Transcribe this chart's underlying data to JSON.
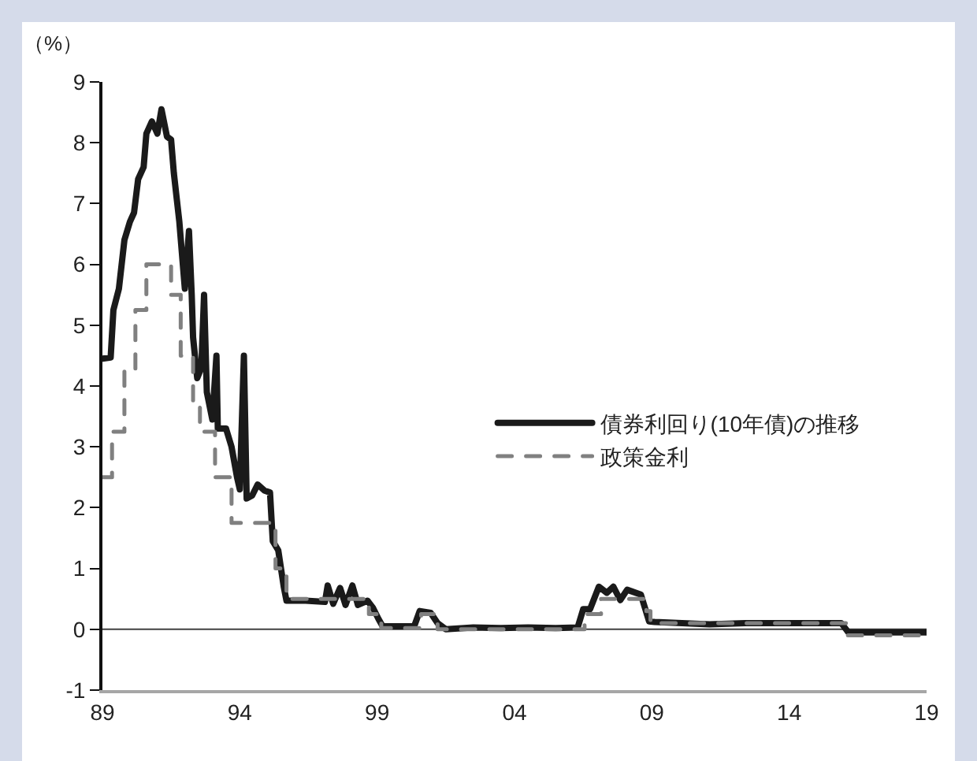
{
  "chart_data": {
    "type": "line",
    "ylabel": "（%）",
    "xlim": [
      1989,
      2019
    ],
    "xticks": [
      {
        "value": 1989,
        "label": "89"
      },
      {
        "value": 1994,
        "label": "94"
      },
      {
        "value": 1999,
        "label": "99"
      },
      {
        "value": 2004,
        "label": "04"
      },
      {
        "value": 2009,
        "label": "09"
      },
      {
        "value": 2014,
        "label": "14"
      },
      {
        "value": 2019,
        "label": "19"
      }
    ],
    "ylim": [
      -1,
      9
    ],
    "yticks": [
      -1,
      0,
      1,
      2,
      3,
      4,
      5,
      6,
      7,
      8,
      9
    ],
    "grid": false,
    "legend": "right",
    "marker": "none",
    "ref_lines": [
      {
        "axis": "y",
        "value": 0,
        "color": "#404040"
      }
    ],
    "series": [
      {
        "name": "債券利回り(10年債)の推移",
        "color": "#1a1a1a",
        "line_style": "solid",
        "x": [
          1989.0,
          1989.3,
          1989.4,
          1989.6,
          1989.8,
          1990.0,
          1990.15,
          1990.3,
          1990.5,
          1990.6,
          1990.8,
          1991.0,
          1991.15,
          1991.35,
          1991.5,
          1991.6,
          1991.8,
          1992.0,
          1992.15,
          1992.25,
          1992.3,
          1992.45,
          1992.6,
          1992.7,
          1992.8,
          1993.0,
          1993.15,
          1993.2,
          1993.5,
          1993.7,
          1993.9,
          1994.0,
          1994.15,
          1994.25,
          1994.45,
          1994.65,
          1994.9,
          1995.1,
          1995.2,
          1995.4,
          1995.6,
          1995.7,
          1996.4,
          1997.1,
          1997.2,
          1997.4,
          1997.65,
          1997.85,
          1998.1,
          1998.3,
          1998.65,
          1998.85,
          1999.05,
          1999.2,
          2000.35,
          2000.55,
          2000.95,
          2001.2,
          2001.5,
          2002.5,
          2003.5,
          2004.5,
          2005.5,
          2006.3,
          2006.5,
          2006.75,
          2007.07,
          2007.36,
          2007.6,
          2007.85,
          2008.1,
          2008.6,
          2008.9,
          2009.1,
          2011.1,
          2012.4,
          2015.9,
          2016.15,
          2019.0
        ],
        "values": [
          4.45,
          4.47,
          5.25,
          5.6,
          6.4,
          6.7,
          6.85,
          7.4,
          7.6,
          8.15,
          8.35,
          8.15,
          8.55,
          8.1,
          8.05,
          7.5,
          6.7,
          5.6,
          6.55,
          5.5,
          4.8,
          4.13,
          4.3,
          5.5,
          3.9,
          3.45,
          4.5,
          3.3,
          3.3,
          3.0,
          2.5,
          2.3,
          4.5,
          2.15,
          2.2,
          2.38,
          2.28,
          2.25,
          1.45,
          1.3,
          0.7,
          0.47,
          0.47,
          0.45,
          0.72,
          0.42,
          0.68,
          0.4,
          0.72,
          0.4,
          0.47,
          0.35,
          0.17,
          0.05,
          0.05,
          0.3,
          0.27,
          0.1,
          0.0,
          0.03,
          0.02,
          0.03,
          0.02,
          0.03,
          0.33,
          0.33,
          0.7,
          0.6,
          0.7,
          0.48,
          0.65,
          0.57,
          0.13,
          0.12,
          0.08,
          0.1,
          0.1,
          -0.05,
          -0.05
        ]
      },
      {
        "name": "政策金利",
        "color": "#808080",
        "line_style": "dashed",
        "x": [
          1989.0,
          1989.35,
          1989.35,
          1989.8,
          1989.8,
          1990.2,
          1990.2,
          1990.6,
          1990.6,
          1991.5,
          1991.5,
          1991.85,
          1991.85,
          1992.3,
          1992.3,
          1992.55,
          1992.55,
          1993.1,
          1993.1,
          1993.7,
          1993.7,
          1995.3,
          1995.3,
          1995.7,
          1995.7,
          1998.7,
          1998.7,
          1999.15,
          1999.15,
          2000.6,
          2000.6,
          2001.2,
          2001.2,
          2006.55,
          2006.55,
          2007.15,
          2007.15,
          2008.8,
          2008.8,
          2008.95,
          2008.95,
          2016.1,
          2016.1,
          2019.0
        ],
        "values": [
          2.5,
          2.5,
          3.25,
          3.25,
          4.25,
          4.25,
          5.25,
          5.25,
          6.0,
          6.0,
          5.5,
          5.5,
          4.5,
          4.5,
          3.75,
          3.75,
          3.25,
          3.25,
          2.5,
          2.5,
          1.75,
          1.75,
          1.0,
          1.0,
          0.5,
          0.5,
          0.25,
          0.25,
          0.02,
          0.02,
          0.25,
          0.25,
          0.0,
          0.0,
          0.25,
          0.25,
          0.5,
          0.5,
          0.3,
          0.3,
          0.1,
          0.1,
          -0.1,
          -0.1
        ]
      }
    ]
  }
}
